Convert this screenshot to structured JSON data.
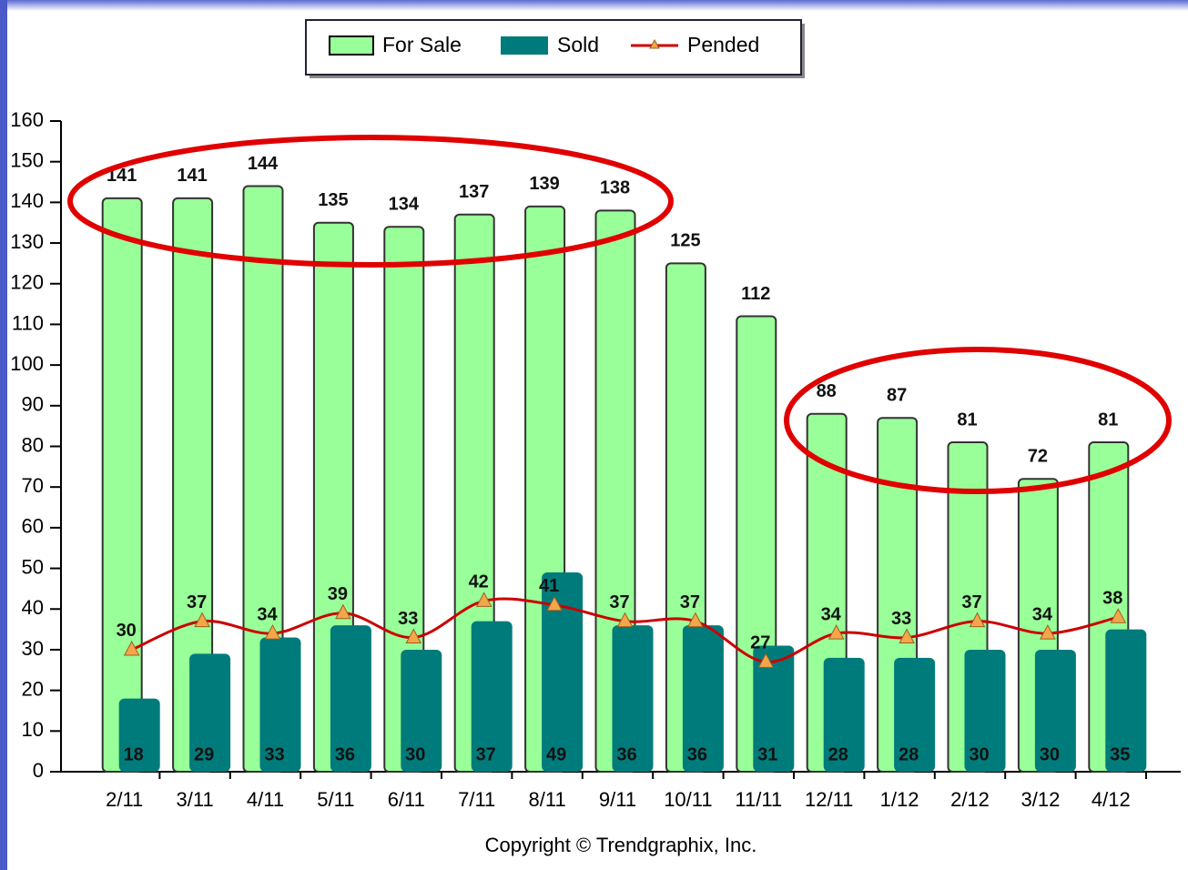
{
  "chart_data": {
    "type": "bar",
    "categories": [
      "2/11",
      "3/11",
      "4/11",
      "5/11",
      "6/11",
      "7/11",
      "8/11",
      "9/11",
      "10/11",
      "11/11",
      "12/11",
      "1/12",
      "2/12",
      "3/12",
      "4/12"
    ],
    "series": [
      {
        "name": "For Sale",
        "type": "bar",
        "color": "#99ff99",
        "values": [
          141,
          141,
          144,
          135,
          134,
          137,
          139,
          138,
          125,
          112,
          88,
          87,
          81,
          72,
          81
        ]
      },
      {
        "name": "Sold",
        "type": "bar",
        "color": "#007b7b",
        "values": [
          18,
          29,
          33,
          36,
          30,
          37,
          49,
          36,
          36,
          31,
          28,
          28,
          30,
          30,
          35
        ]
      },
      {
        "name": "Pended",
        "type": "line",
        "color": "#cc0000",
        "values": [
          30,
          37,
          34,
          39,
          33,
          42,
          41,
          37,
          37,
          27,
          34,
          33,
          37,
          34,
          38
        ]
      }
    ],
    "ylim": [
      0,
      160
    ],
    "yticks": [
      0,
      10,
      20,
      30,
      40,
      50,
      60,
      70,
      80,
      90,
      100,
      110,
      120,
      130,
      140,
      150,
      160
    ],
    "footer": "Copyright © Trendgraphix, Inc."
  }
}
